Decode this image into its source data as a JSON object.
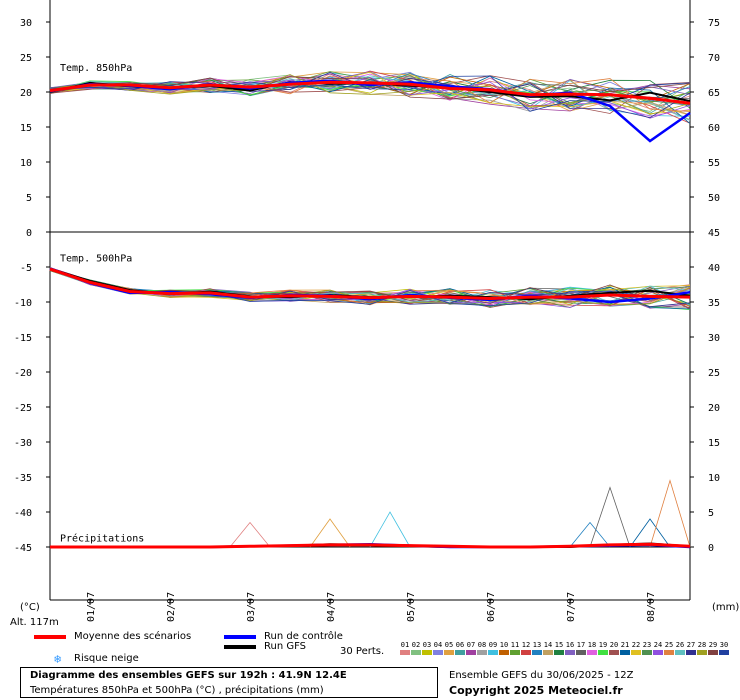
{
  "chart_data": {
    "type": "line",
    "title": "Diagramme des ensembles GEFS sur 192h : 41.9N 12.4E",
    "subtitle": "Températures 850hPa et 500hPa (°C) , précipitations (mm)",
    "run_info": "Ensemble GEFS du 30/06/2025 - 12Z",
    "copyright": "Copyright 2025 Meteociel.fr",
    "altitude_label": "Alt. 117m",
    "left_unit": "(°C)",
    "right_unit": "(mm)",
    "x_labels": [
      "01/07",
      "02/07",
      "03/07",
      "04/07",
      "05/07",
      "06/07",
      "07/07",
      "08/07"
    ],
    "left_ticks": [
      "30",
      "25",
      "20",
      "15",
      "10",
      "5",
      "0",
      "-5",
      "-10",
      "-15",
      "-20",
      "-25",
      "-30",
      "-35",
      "-40",
      "-45"
    ],
    "right_ticks": [
      "75",
      "70",
      "65",
      "60",
      "55",
      "50",
      "45",
      "40",
      "35",
      "30",
      "25",
      "20",
      "15",
      "10",
      "5",
      "0"
    ],
    "panel_labels": {
      "t850": "Temp. 850hPa",
      "t500": "Temp. 500hPa",
      "precip": "Précipitations"
    },
    "legend": {
      "mean": "Moyenne des scénarios",
      "control": "Run de contrôle",
      "gfs": "Run GFS",
      "snow": "Risque neige",
      "perts": "30 Perts."
    },
    "pert_labels": [
      "01",
      "02",
      "03",
      "04",
      "05",
      "06",
      "07",
      "08",
      "09",
      "10",
      "11",
      "12",
      "13",
      "14",
      "15",
      "16",
      "17",
      "18",
      "19",
      "20",
      "21",
      "22",
      "23",
      "24",
      "25",
      "26",
      "27",
      "28",
      "29",
      "30"
    ],
    "pert_colors": [
      "#e08080",
      "#80c080",
      "#c0c000",
      "#8080e0",
      "#e0a040",
      "#40a0a0",
      "#a040a0",
      "#a0a0a0",
      "#40c0e0",
      "#c06000",
      "#60a030",
      "#d04040",
      "#2080c0",
      "#c0a060",
      "#208040",
      "#8060c0",
      "#606060",
      "#e060e0",
      "#40e040",
      "#a05050",
      "#0060a0",
      "#e0c020",
      "#509050",
      "#9050e0",
      "#e08040",
      "#60c0c0",
      "#303090",
      "#a0a020",
      "#804040",
      "#2040a0"
    ],
    "series_colors": {
      "mean": "#ff0000",
      "control": "#0000ff",
      "gfs": "#000000"
    },
    "t850": {
      "ylim": [
        0,
        30
      ],
      "x_hours": [
        0,
        12,
        24,
        36,
        48,
        60,
        72,
        84,
        96,
        108,
        120,
        132,
        144,
        156,
        168,
        180,
        192
      ],
      "mean": [
        20.2,
        21.0,
        21.0,
        20.6,
        21.0,
        20.7,
        21.1,
        21.4,
        21.3,
        21.1,
        20.5,
        20.3,
        19.6,
        19.7,
        19.6,
        19.1,
        18.4
      ],
      "control": [
        20.1,
        21.1,
        20.9,
        20.4,
        21.1,
        20.5,
        21.3,
        21.6,
        21.0,
        21.4,
        20.8,
        20.4,
        19.5,
        19.9,
        18.0,
        13.0,
        17.0
      ],
      "gfs": [
        20.0,
        21.3,
        20.8,
        20.5,
        20.9,
        20.2,
        21.4,
        21.2,
        21.2,
        20.9,
        20.6,
        20.0,
        19.3,
        19.4,
        18.8,
        19.9,
        18.7
      ]
    },
    "t500": {
      "ylim": [
        -20,
        -5
      ],
      "x_hours": [
        0,
        12,
        24,
        36,
        48,
        60,
        72,
        84,
        96,
        108,
        120,
        132,
        144,
        156,
        168,
        180,
        192
      ],
      "mean": [
        -5.3,
        -7.2,
        -8.5,
        -8.8,
        -8.7,
        -9.3,
        -9.1,
        -9.2,
        -9.4,
        -9.2,
        -9.3,
        -9.5,
        -9.3,
        -9.3,
        -9.0,
        -9.2,
        -9.3
      ],
      "control": [
        -5.2,
        -7.3,
        -8.7,
        -8.6,
        -8.9,
        -9.4,
        -9.0,
        -9.1,
        -9.6,
        -9.0,
        -9.4,
        -9.7,
        -9.1,
        -9.5,
        -10.0,
        -9.5,
        -8.6
      ],
      "gfs": [
        -5.2,
        -7.0,
        -8.3,
        -8.9,
        -8.5,
        -9.2,
        -9.3,
        -9.0,
        -9.3,
        -9.3,
        -9.1,
        -9.3,
        -9.6,
        -9.1,
        -8.7,
        -8.4,
        -9.1
      ]
    },
    "precip": {
      "ylim": [
        0,
        15
      ],
      "x_hours": [
        0,
        12,
        24,
        36,
        48,
        60,
        72,
        84,
        96,
        108,
        120,
        132,
        144,
        156,
        168,
        180,
        192
      ],
      "mean": [
        0,
        0,
        0,
        0,
        0,
        0.1,
        0.2,
        0.3,
        0.3,
        0.2,
        0.1,
        0,
        0,
        0.1,
        0.3,
        0.4,
        0.1
      ],
      "control": [
        0,
        0,
        0,
        0,
        0,
        0.1,
        0.2,
        0.3,
        0.4,
        0.2,
        0,
        0,
        0,
        0.1,
        0.2,
        0.3,
        0
      ],
      "gfs": [
        0,
        0,
        0,
        0,
        0,
        0.1,
        0.2,
        0.4,
        0.3,
        0.1,
        0,
        0,
        0,
        0,
        0.3,
        0.5,
        0.1
      ],
      "peaks": [
        {
          "h": 60,
          "v": 3.5
        },
        {
          "h": 84,
          "v": 4.0
        },
        {
          "h": 102,
          "v": 5.0
        },
        {
          "h": 162,
          "v": 3.5
        },
        {
          "h": 168,
          "v": 8.5
        },
        {
          "h": 180,
          "v": 4.0
        },
        {
          "h": 186,
          "v": 9.5
        }
      ]
    }
  }
}
